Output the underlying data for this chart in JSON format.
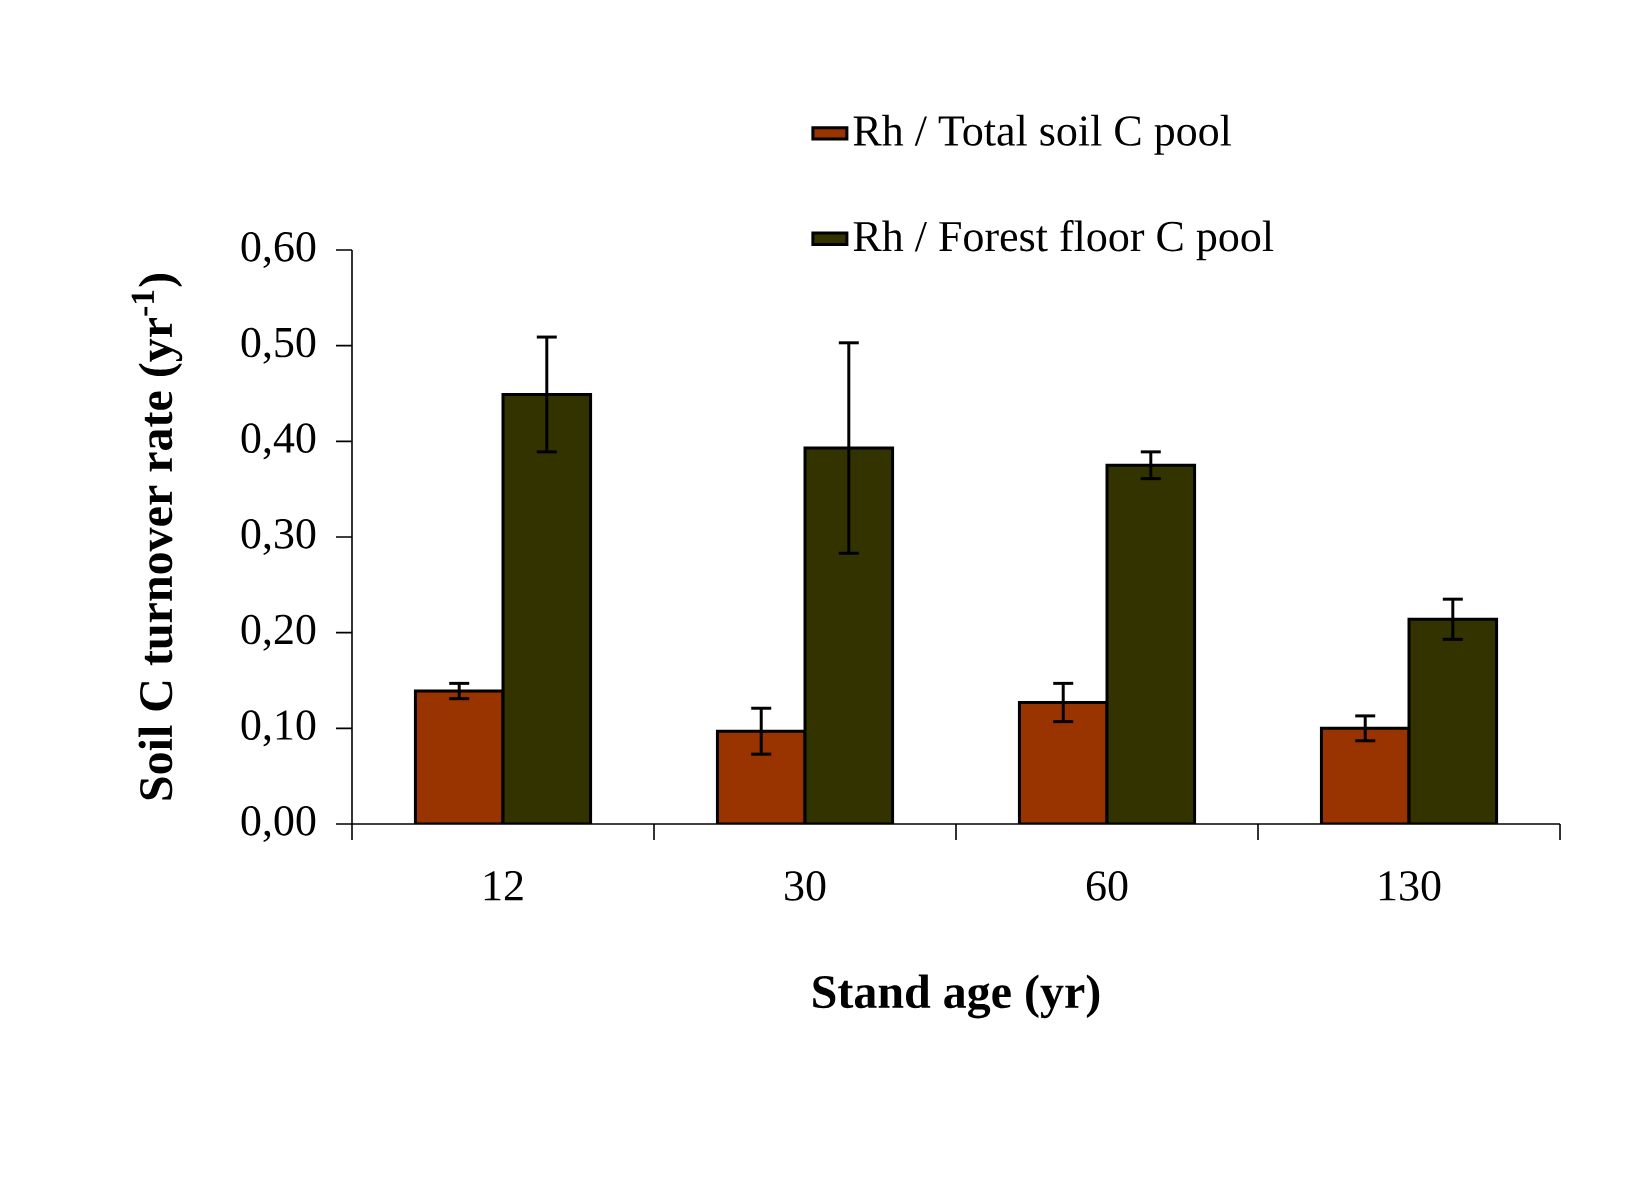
{
  "chart_data": {
    "type": "bar",
    "xlabel": "Stand age (yr)",
    "ylabel": "Soil C turnover rate  (yr$^{-1}$)",
    "categories": [
      "12",
      "30",
      "60",
      "130"
    ],
    "series": [
      {
        "name": "Rh / Total soil C pool",
        "color": "#993300",
        "values": [
          0.139,
          0.097,
          0.127,
          0.1
        ],
        "errors": [
          0.008,
          0.024,
          0.02,
          0.013
        ]
      },
      {
        "name": "Rh / Forest floor C pool",
        "color": "#333300",
        "values": [
          0.449,
          0.393,
          0.375,
          0.214
        ],
        "errors": [
          0.06,
          0.11,
          0.014,
          0.021
        ]
      }
    ],
    "ylim": [
      0,
      0.6
    ],
    "yticks": [
      {
        "value": 0,
        "label": "0,00"
      },
      {
        "value": 0.1,
        "label": "0,10"
      },
      {
        "value": 0.2,
        "label": "0,20"
      },
      {
        "value": 0.3,
        "label": "0,30"
      },
      {
        "value": 0.4,
        "label": "0,40"
      },
      {
        "value": 0.5,
        "label": "0,50"
      },
      {
        "value": 0.6,
        "label": "0,60"
      }
    ],
    "legend": "top right",
    "grid": false
  }
}
